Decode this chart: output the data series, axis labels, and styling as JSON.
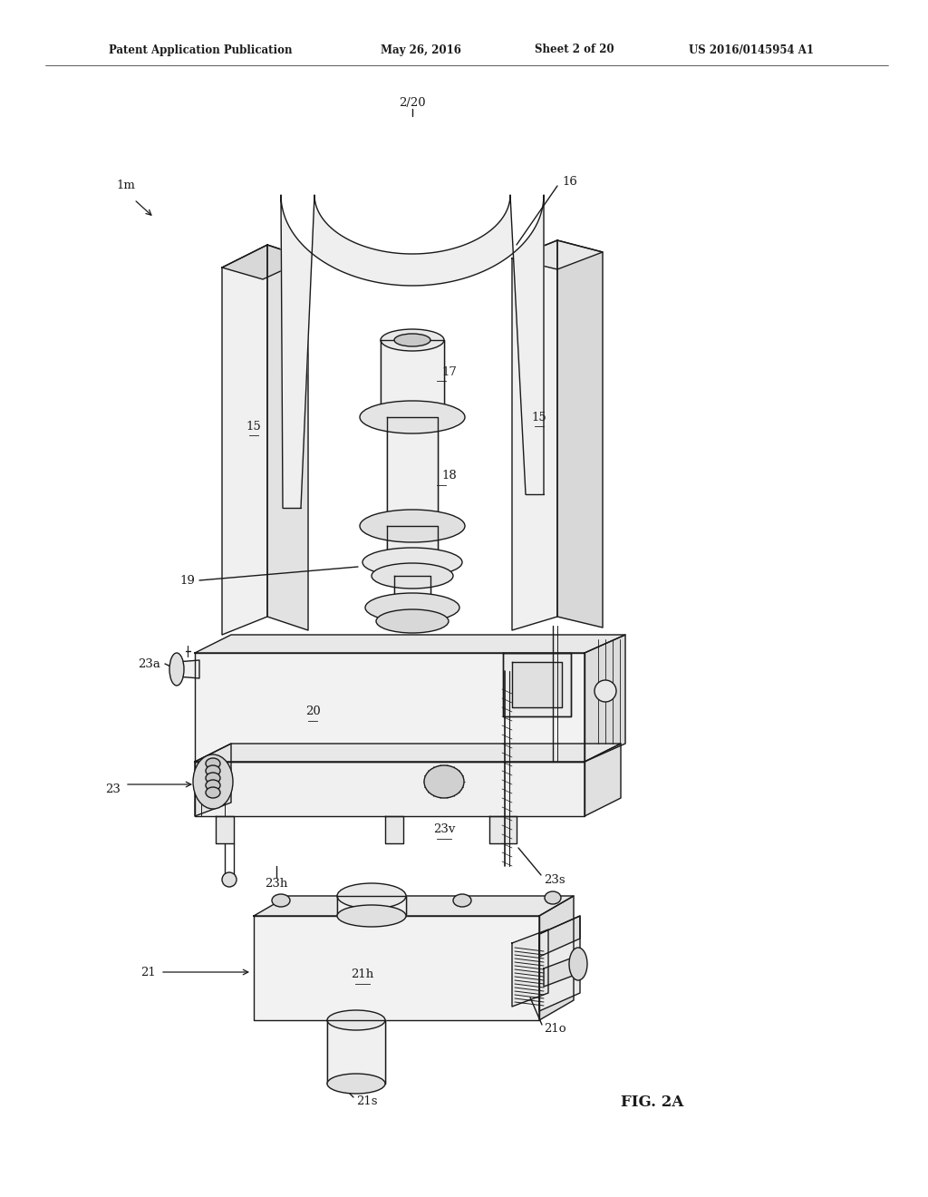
{
  "background_color": "#ffffff",
  "line_color": "#1a1a1a",
  "line_width": 1.0,
  "header_text": "Patent Application Publication",
  "header_date": "May 26, 2016",
  "header_sheet": "Sheet 2 of 20",
  "header_patent": "US 2016/0145954 A1",
  "fig_label": "FIG. 2A",
  "label_fontsize": 9.5,
  "header_fontsize": 8.5
}
